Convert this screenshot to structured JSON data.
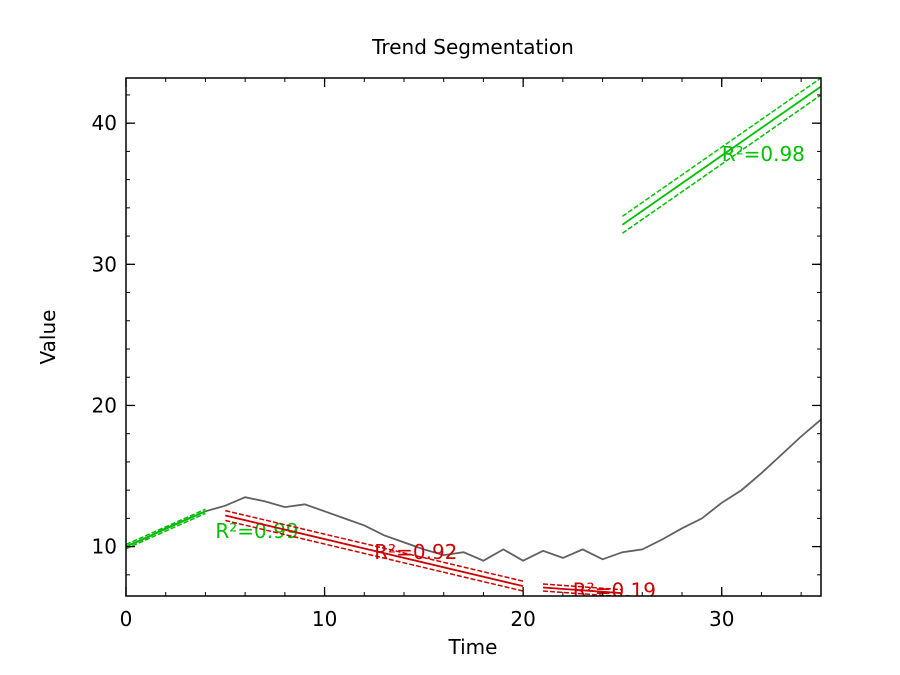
{
  "chart_data": {
    "type": "line",
    "title": "Trend Segmentation",
    "xlabel": "Time",
    "ylabel": "Value",
    "xlim": [
      0,
      35
    ],
    "ylim": [
      6.5,
      43.2
    ],
    "grid": false,
    "x_ticks": [
      0,
      10,
      20,
      30
    ],
    "y_ticks": [
      10,
      20,
      30,
      40
    ],
    "colors": {
      "series": "#606060",
      "rising": "#00c000",
      "falling": "#cc0000",
      "axis": "#000000"
    },
    "series": [
      {
        "x": [
          0,
          1,
          2,
          3,
          4,
          5,
          6,
          7,
          8,
          9,
          10,
          11,
          12,
          13,
          14,
          15,
          16,
          17,
          18,
          19,
          20,
          21,
          22,
          23,
          24,
          25,
          26,
          27,
          28,
          29,
          30,
          31,
          32,
          33,
          34,
          35
        ],
        "y": [
          10.0,
          10.6,
          11.3,
          11.9,
          12.5,
          12.9,
          13.5,
          13.2,
          12.8,
          13.0,
          12.5,
          12.0,
          11.5,
          10.8,
          10.3,
          9.8,
          9.4,
          9.6,
          9.0,
          9.8,
          9.0,
          9.7,
          9.2,
          9.8,
          9.1,
          9.6,
          9.8,
          10.5,
          11.3,
          12.0,
          13.1,
          14.0,
          15.2,
          16.5,
          17.8,
          19.0
        ]
      }
    ],
    "segments": [
      {
        "label": "R²=0.99",
        "trend": "rising",
        "x": [
          0,
          4
        ],
        "y": [
          10.0,
          12.5
        ],
        "band": 0.15,
        "label_at": [
          4.5,
          11.1
        ]
      },
      {
        "label": "R²=0.92",
        "trend": "falling",
        "x": [
          5,
          20
        ],
        "y": [
          12.2,
          7.2
        ],
        "band": 0.35,
        "label_at": [
          12.5,
          9.6
        ]
      },
      {
        "label": "R²=0.19",
        "trend": "falling",
        "x": [
          21,
          25
        ],
        "y": [
          7.1,
          6.7
        ],
        "band": 0.25,
        "label_at": [
          22.5,
          6.9
        ]
      },
      {
        "label": "R²=0.98",
        "trend": "rising",
        "x": [
          25,
          35
        ],
        "y": [
          32.8,
          42.6
        ],
        "band": 0.6,
        "label_at": [
          30,
          37.8
        ]
      }
    ]
  }
}
